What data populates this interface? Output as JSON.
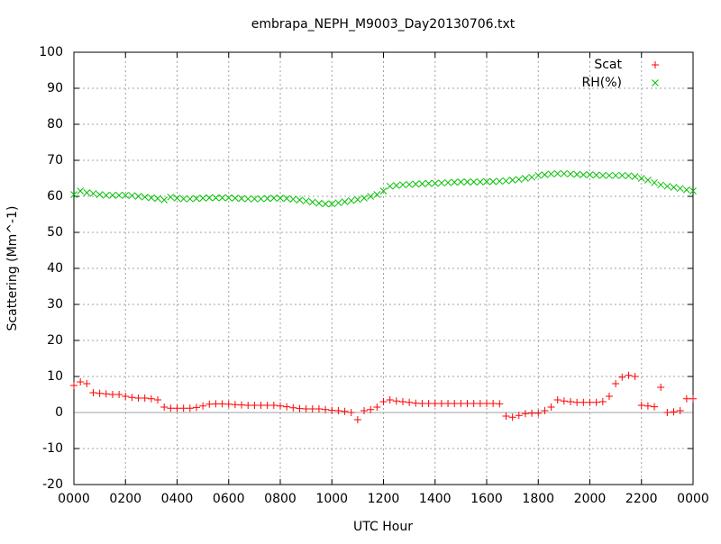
{
  "chart_data": {
    "type": "scatter",
    "title": "embrapa_NEPH_M9003_Day20130706.txt",
    "xlabel": "UTC Hour",
    "ylabel": "Scattering (Mm^-1)",
    "x": [
      0,
      0.25,
      0.5,
      0.75,
      1,
      1.25,
      1.5,
      1.75,
      2,
      2.25,
      2.5,
      2.75,
      3,
      3.25,
      3.5,
      3.75,
      4,
      4.25,
      4.5,
      4.75,
      5,
      5.25,
      5.5,
      5.75,
      6,
      6.25,
      6.5,
      6.75,
      7,
      7.25,
      7.5,
      7.75,
      8,
      8.25,
      8.5,
      8.75,
      9,
      9.25,
      9.5,
      9.75,
      10,
      10.25,
      10.5,
      10.75,
      11,
      11.25,
      11.5,
      11.75,
      12,
      12.25,
      12.5,
      12.75,
      13,
      13.25,
      13.5,
      13.75,
      14,
      14.25,
      14.5,
      14.75,
      15,
      15.25,
      15.5,
      15.75,
      16,
      16.25,
      16.5,
      16.75,
      17,
      17.25,
      17.5,
      17.75,
      18,
      18.25,
      18.5,
      18.75,
      19,
      19.25,
      19.5,
      19.75,
      20,
      20.25,
      20.5,
      20.75,
      21,
      21.25,
      21.5,
      21.75,
      22,
      22.25,
      22.5,
      22.75,
      23,
      23.25,
      23.5,
      23.75,
      24
    ],
    "series": [
      {
        "name": "Scat",
        "color": "#ff0000",
        "marker": "plus",
        "values": [
          7.5,
          8.5,
          8,
          5.5,
          5.3,
          5.2,
          5,
          5,
          4.5,
          4.2,
          4,
          4,
          3.8,
          3.5,
          1.5,
          1.2,
          1.2,
          1.2,
          1.2,
          1.4,
          1.8,
          2.3,
          2.4,
          2.4,
          2.3,
          2.2,
          2.1,
          2,
          2,
          2,
          2,
          2,
          1.8,
          1.6,
          1.3,
          1.1,
          1,
          1,
          1,
          0.8,
          0.6,
          0.5,
          0.3,
          0,
          -2,
          0.5,
          0.8,
          1.5,
          3,
          3.5,
          3.2,
          3,
          2.8,
          2.6,
          2.5,
          2.5,
          2.5,
          2.5,
          2.5,
          2.5,
          2.5,
          2.5,
          2.5,
          2.5,
          2.5,
          2.5,
          2.4,
          -1,
          -1.3,
          -0.8,
          -0.3,
          -0.2,
          -0.2,
          0.5,
          1.5,
          3.5,
          3.2,
          3,
          2.8,
          2.8,
          2.8,
          2.8,
          3,
          4.5,
          8,
          9.8,
          10.3,
          10,
          2,
          1.8,
          1.6,
          7,
          0,
          0.2,
          0.5,
          3.8,
          3.8
        ]
      },
      {
        "name": "RH(%)",
        "color": "#00c000",
        "marker": "cross",
        "values": [
          60.5,
          61.5,
          61,
          60.8,
          60.5,
          60.3,
          60.3,
          60.3,
          60.3,
          60.2,
          60,
          59.8,
          59.6,
          59.4,
          59,
          59.8,
          59.5,
          59.3,
          59.3,
          59.4,
          59.5,
          59.6,
          59.6,
          59.6,
          59.6,
          59.5,
          59.4,
          59.3,
          59.3,
          59.3,
          59.4,
          59.5,
          59.5,
          59.4,
          59.2,
          59,
          58.7,
          58.4,
          58.1,
          57.9,
          57.9,
          58.2,
          58.5,
          58.8,
          59.1,
          59.5,
          60,
          60.5,
          61.5,
          62.8,
          63,
          63.2,
          63.3,
          63.4,
          63.5,
          63.6,
          63.6,
          63.7,
          63.8,
          63.9,
          64,
          64,
          64,
          64,
          64.1,
          64.1,
          64.2,
          64.3,
          64.5,
          64.7,
          65,
          65.3,
          65.8,
          66,
          66.2,
          66.3,
          66.3,
          66.2,
          66.1,
          66,
          66,
          65.9,
          65.8,
          65.8,
          65.8,
          65.8,
          65.7,
          65.5,
          65,
          64.5,
          63.8,
          63.2,
          62.8,
          62.5,
          62.2,
          61.8,
          61.5
        ]
      }
    ],
    "xlim": [
      0,
      24
    ],
    "xticks": [
      {
        "value": 0,
        "label": "0000"
      },
      {
        "value": 2,
        "label": "0200"
      },
      {
        "value": 4,
        "label": "0400"
      },
      {
        "value": 6,
        "label": "0600"
      },
      {
        "value": 8,
        "label": "0800"
      },
      {
        "value": 10,
        "label": "1000"
      },
      {
        "value": 12,
        "label": "1200"
      },
      {
        "value": 14,
        "label": "1400"
      },
      {
        "value": 16,
        "label": "1600"
      },
      {
        "value": 18,
        "label": "1800"
      },
      {
        "value": 20,
        "label": "2000"
      },
      {
        "value": 22,
        "label": "2200"
      },
      {
        "value": 24,
        "label": "0000"
      }
    ],
    "ylim": [
      -20,
      100
    ],
    "yticks": [
      -20,
      -10,
      0,
      10,
      20,
      30,
      40,
      50,
      60,
      70,
      80,
      90,
      100
    ],
    "grid": true,
    "legend": "top-right"
  }
}
